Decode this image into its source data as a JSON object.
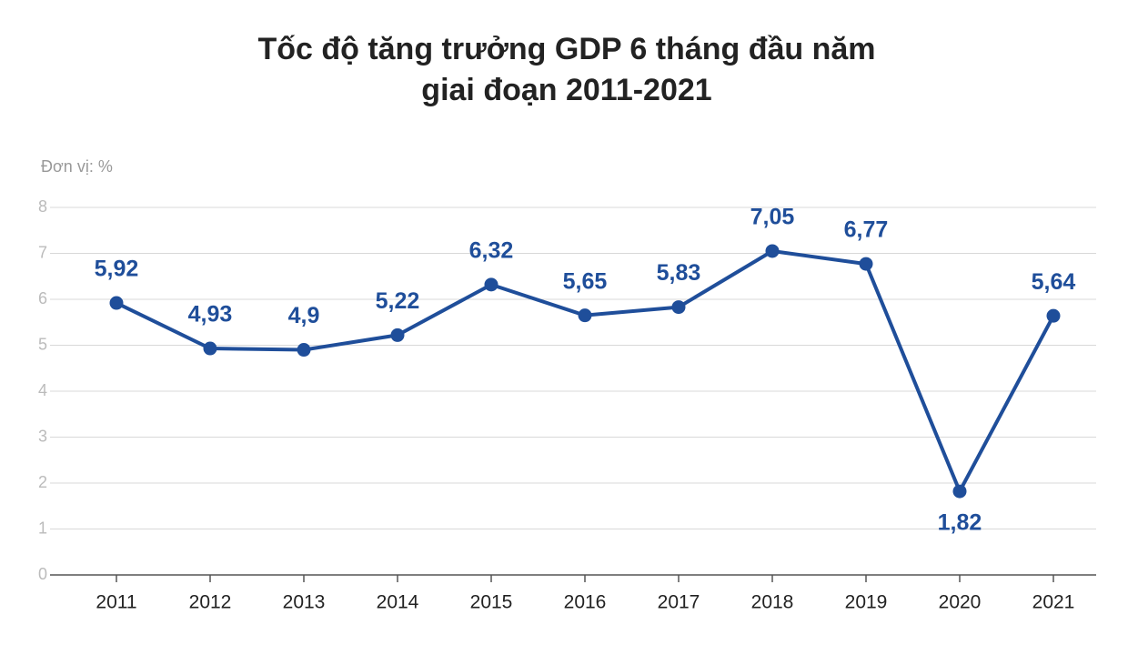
{
  "chart_data": {
    "type": "line",
    "title": [
      "Tốc độ tăng trưởng GDP 6 tháng đầu năm",
      "giai đoạn 2011-2021"
    ],
    "y_axis_label": "Đơn vị: %",
    "categories": [
      "2011",
      "2012",
      "2013",
      "2014",
      "2015",
      "2016",
      "2017",
      "2018",
      "2019",
      "2020",
      "2021"
    ],
    "series": [
      {
        "name": "GDP",
        "color": "#1f4e9a",
        "values": [
          5.92,
          4.93,
          4.9,
          5.22,
          6.32,
          5.65,
          5.83,
          7.05,
          6.77,
          1.82,
          5.64
        ],
        "value_labels": [
          "5,92",
          "4,93",
          "4,9",
          "5,22",
          "6,32",
          "5,65",
          "5,83",
          "7,05",
          "6,77",
          "1,82",
          "5,64"
        ]
      }
    ],
    "ylim": [
      0,
      8
    ],
    "yticks": [
      0,
      1,
      2,
      3,
      4,
      5,
      6,
      7,
      8
    ],
    "grid": true
  }
}
